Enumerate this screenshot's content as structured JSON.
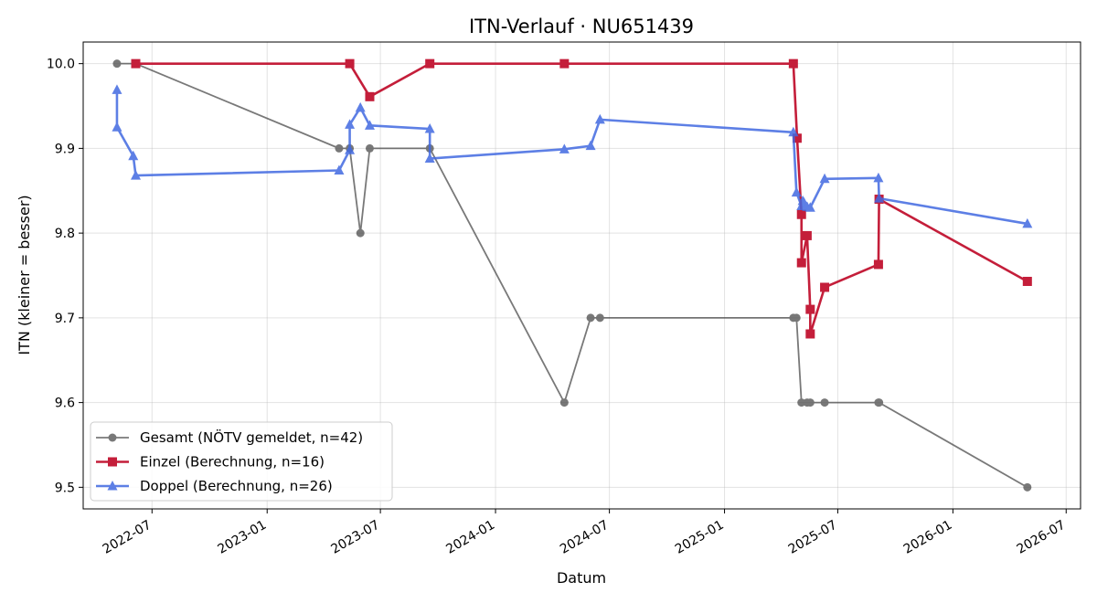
{
  "chart_data": {
    "type": "line",
    "title": "ITN-Verlauf · NU651439",
    "xlabel": "Datum",
    "ylabel": "ITN  (kleiner = besser)",
    "xlim": [
      "2022-03-13",
      "2026-07-24"
    ],
    "ylim": [
      9.4745,
      10.0255
    ],
    "x_ticks": [
      {
        "date": "2022-07-01",
        "label": "2022-07"
      },
      {
        "date": "2023-01-01",
        "label": "2023-01"
      },
      {
        "date": "2023-07-01",
        "label": "2023-07"
      },
      {
        "date": "2024-01-01",
        "label": "2024-01"
      },
      {
        "date": "2024-07-01",
        "label": "2024-07"
      },
      {
        "date": "2025-01-01",
        "label": "2025-01"
      },
      {
        "date": "2025-07-01",
        "label": "2025-07"
      },
      {
        "date": "2026-01-01",
        "label": "2026-01"
      },
      {
        "date": "2026-07-01",
        "label": "2026-07"
      }
    ],
    "y_ticks": [
      {
        "value": 9.5,
        "label": "9.5"
      },
      {
        "value": 9.6,
        "label": "9.6"
      },
      {
        "value": 9.7,
        "label": "9.7"
      },
      {
        "value": 9.8,
        "label": "9.8"
      },
      {
        "value": 9.9,
        "label": "9.9"
      },
      {
        "value": 10.0,
        "label": "10.0"
      }
    ],
    "grid": true,
    "legend_position": "lower-left",
    "series": [
      {
        "name": "Gesamt (NÖTV gemeldet, n=42)",
        "color": "#404040",
        "marker": "circle",
        "points": [
          {
            "x": "2022-05-06",
            "y": 10.0
          },
          {
            "x": "2022-06-05",
            "y": 10.0
          },
          {
            "x": "2023-04-26",
            "y": 9.9
          },
          {
            "x": "2023-05-13",
            "y": 9.9
          },
          {
            "x": "2023-05-30",
            "y": 9.8
          },
          {
            "x": "2023-06-14",
            "y": 9.9
          },
          {
            "x": "2023-09-18",
            "y": 9.9
          },
          {
            "x": "2024-04-20",
            "y": 9.6
          },
          {
            "x": "2024-06-01",
            "y": 9.7
          },
          {
            "x": "2024-06-16",
            "y": 9.7
          },
          {
            "x": "2025-04-21",
            "y": 9.7
          },
          {
            "x": "2025-04-26",
            "y": 9.7
          },
          {
            "x": "2025-05-04",
            "y": 9.6
          },
          {
            "x": "2025-05-13",
            "y": 9.6
          },
          {
            "x": "2025-05-18",
            "y": 9.6
          },
          {
            "x": "2025-06-10",
            "y": 9.6
          },
          {
            "x": "2025-09-04",
            "y": 9.6
          },
          {
            "x": "2025-09-05",
            "y": 9.6
          },
          {
            "x": "2026-04-30",
            "y": 9.5
          }
        ]
      },
      {
        "name": "Einzel (Berechnung, n=16)",
        "color": "#c41e3a",
        "marker": "square",
        "points": [
          {
            "x": "2022-06-05",
            "y": 10.0
          },
          {
            "x": "2023-05-13",
            "y": 10.0
          },
          {
            "x": "2023-06-14",
            "y": 9.961
          },
          {
            "x": "2023-09-18",
            "y": 10.0
          },
          {
            "x": "2024-04-20",
            "y": 10.0
          },
          {
            "x": "2025-04-21",
            "y": 10.0
          },
          {
            "x": "2025-04-27",
            "y": 9.912
          },
          {
            "x": "2025-05-04",
            "y": 9.822
          },
          {
            "x": "2025-05-04",
            "y": 9.765
          },
          {
            "x": "2025-05-13",
            "y": 9.797
          },
          {
            "x": "2025-05-18",
            "y": 9.71
          },
          {
            "x": "2025-05-18",
            "y": 9.681
          },
          {
            "x": "2025-06-10",
            "y": 9.736
          },
          {
            "x": "2025-09-04",
            "y": 9.763
          },
          {
            "x": "2025-09-05",
            "y": 9.84
          },
          {
            "x": "2026-04-30",
            "y": 9.743
          }
        ]
      },
      {
        "name": "Doppel (Berechnung, n=26)",
        "color": "#4169e1",
        "marker": "triangle",
        "points": [
          {
            "x": "2022-05-06",
            "y": 9.969
          },
          {
            "x": "2022-05-06",
            "y": 9.925
          },
          {
            "x": "2022-06-01",
            "y": 9.891
          },
          {
            "x": "2022-06-05",
            "y": 9.868
          },
          {
            "x": "2023-04-26",
            "y": 9.874
          },
          {
            "x": "2023-05-13",
            "y": 9.898
          },
          {
            "x": "2023-05-13",
            "y": 9.928
          },
          {
            "x": "2023-05-30",
            "y": 9.948
          },
          {
            "x": "2023-06-14",
            "y": 9.927
          },
          {
            "x": "2023-09-18",
            "y": 9.923
          },
          {
            "x": "2023-09-18",
            "y": 9.888
          },
          {
            "x": "2024-04-20",
            "y": 9.899
          },
          {
            "x": "2024-06-01",
            "y": 9.903
          },
          {
            "x": "2024-06-16",
            "y": 9.934
          },
          {
            "x": "2025-04-21",
            "y": 9.919
          },
          {
            "x": "2025-04-26",
            "y": 9.848
          },
          {
            "x": "2025-05-04",
            "y": 9.832
          },
          {
            "x": "2025-05-06",
            "y": 9.838
          },
          {
            "x": "2025-05-08",
            "y": 9.836
          },
          {
            "x": "2025-05-13",
            "y": 9.831
          },
          {
            "x": "2025-05-18",
            "y": 9.83
          },
          {
            "x": "2025-06-10",
            "y": 9.864
          },
          {
            "x": "2025-09-04",
            "y": 9.865
          },
          {
            "x": "2025-09-05",
            "y": 9.841
          },
          {
            "x": "2026-04-30",
            "y": 9.811
          }
        ]
      }
    ]
  }
}
